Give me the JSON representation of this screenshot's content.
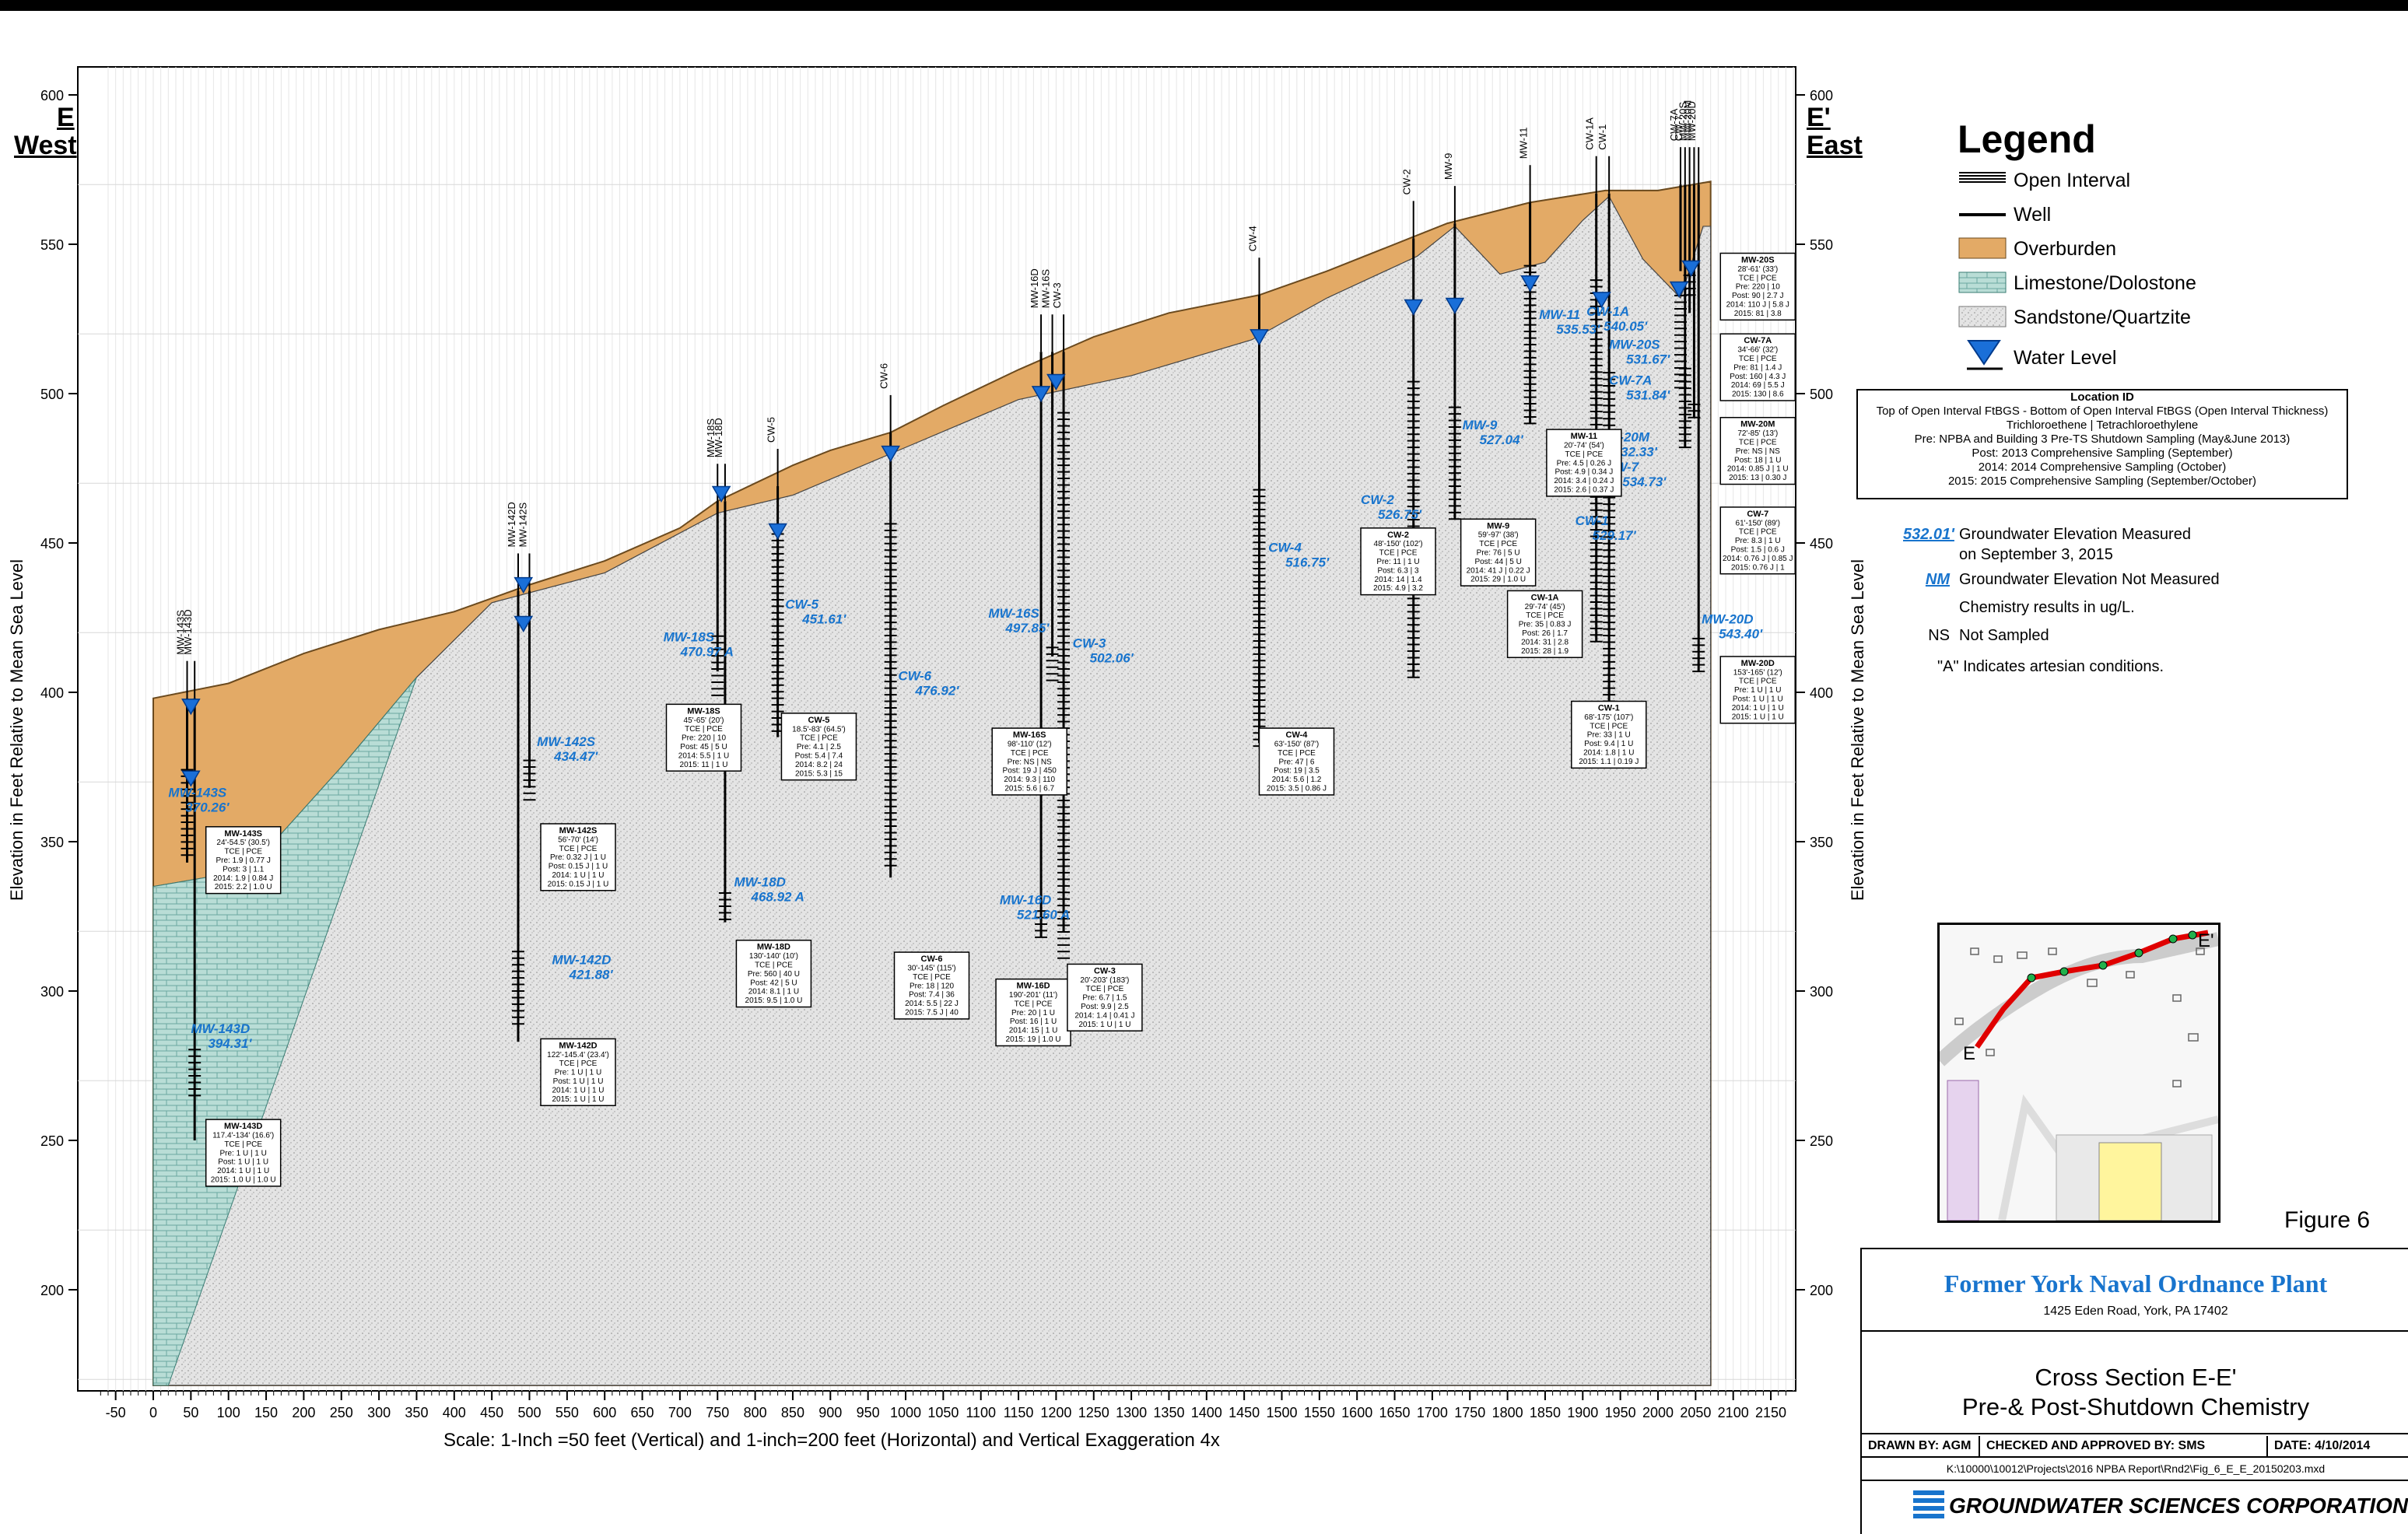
{
  "side_labels": {
    "left_code": "E",
    "left_dir": "West",
    "right_code": "E'",
    "right_dir": "East"
  },
  "axis": {
    "y_label": "Elevation in Feet Relative to Mean Sea Level",
    "y_ticks": [
      200,
      250,
      300,
      350,
      400,
      450,
      500,
      550,
      600
    ],
    "x_ticks": [
      -50,
      0,
      50,
      100,
      150,
      200,
      250,
      300,
      350,
      400,
      450,
      500,
      550,
      600,
      650,
      700,
      750,
      800,
      850,
      900,
      950,
      1000,
      1050,
      1100,
      1150,
      1200,
      1250,
      1300,
      1350,
      1400,
      1450,
      1500,
      1550,
      1600,
      1650,
      1700,
      1750,
      1800,
      1850,
      1900,
      1950,
      2000,
      2050,
      2100,
      2150
    ],
    "scale_text": "Scale: 1-Inch =50 feet (Vertical) and 1-inch=200 feet (Horizontal) and Vertical Exaggeration 4x"
  },
  "colors": {
    "overburden": "#e3aa66",
    "limestone": "#b9ddd6",
    "sandstone": "#e3e3e3",
    "water": "#1a6fd8",
    "label_blue": "#1874cd",
    "red": "#d40000"
  },
  "ground_surface": [
    [
      0,
      398
    ],
    [
      100,
      403
    ],
    [
      200,
      413
    ],
    [
      300,
      421
    ],
    [
      400,
      427
    ],
    [
      500,
      436
    ],
    [
      600,
      444
    ],
    [
      700,
      455
    ],
    [
      750,
      464
    ],
    [
      800,
      470
    ],
    [
      850,
      476
    ],
    [
      900,
      481
    ],
    [
      980,
      487
    ],
    [
      1050,
      496
    ],
    [
      1150,
      508
    ],
    [
      1250,
      519
    ],
    [
      1350,
      527
    ],
    [
      1470,
      533
    ],
    [
      1560,
      541
    ],
    [
      1680,
      553
    ],
    [
      1720,
      557
    ],
    [
      1830,
      564
    ],
    [
      1930,
      568
    ],
    [
      2000,
      568
    ],
    [
      2070,
      571
    ]
  ],
  "wells": [
    {
      "name": "MW-143S",
      "x": 45,
      "top": 398,
      "bottom": 343,
      "screen_top": 375,
      "screen_bottom": 345.5,
      "wl_value": "MW-143S\n370.26'",
      "wl": 370.26
    },
    {
      "name": "MW-143D",
      "x": 55,
      "top": 398,
      "bottom": 250,
      "screen_top": 282,
      "screen_bottom": 265,
      "wl_value": "MW-143D\n394.31'",
      "wl": 394.31
    },
    {
      "name": "MW-142D",
      "x": 485,
      "top": 434,
      "bottom": 283,
      "screen_top": 314,
      "screen_bottom": 289,
      "wl_value": "MW-142D\n421.88'",
      "wl": 421.88
    },
    {
      "name": "MW-142S",
      "x": 500,
      "top": 434,
      "bottom": 368,
      "screen_top": 378,
      "screen_bottom": 364,
      "wl_value": "MW-142S\n434.47'",
      "wl": 434.47
    },
    {
      "name": "MW-18S",
      "x": 750,
      "top": 464,
      "bottom": 407,
      "screen_top": 419,
      "screen_bottom": 399,
      "wl_value": "MW-18S\n470.97 A",
      "wl": 470.97
    },
    {
      "name": "MW-18D",
      "x": 760,
      "top": 464,
      "bottom": 323,
      "screen_top": 334,
      "screen_bottom": 324,
      "wl_value": "MW-18D\n468.92 A",
      "wl": 468.92
    },
    {
      "name": "CW-5",
      "x": 830,
      "top": 469,
      "bottom": 385,
      "screen_top": 455,
      "screen_bottom": 387,
      "wl_value": "CW-5\n451.61'",
      "wl": 451.61
    },
    {
      "name": "CW-6",
      "x": 980,
      "top": 487,
      "bottom": 338,
      "screen_top": 457,
      "screen_bottom": 342,
      "wl_value": "CW-6\n476.92'",
      "wl": 476.92
    },
    {
      "name": "MW-16D",
      "x": 1180,
      "top": 514,
      "bottom": 318,
      "screen_top": 328,
      "screen_bottom": 318,
      "wl_value": "MW-16D\n521.60 A",
      "wl": 521.6
    },
    {
      "name": "MW-16S",
      "x": 1195,
      "top": 514,
      "bottom": 412,
      "screen_top": 416,
      "screen_bottom": 404,
      "wl_value": "MW-16S\n497.85'",
      "wl": 497.85
    },
    {
      "name": "CW-3",
      "x": 1210,
      "top": 514,
      "bottom": 320,
      "screen_top": 494,
      "screen_bottom": 311,
      "wl_value": "CW-3\n502.06'",
      "wl": 502.06
    },
    {
      "name": "CW-4",
      "x": 1470,
      "top": 533,
      "bottom": 383,
      "screen_top": 468,
      "screen_bottom": 382,
      "wl_value": "CW-4\n516.75'",
      "wl": 516.75
    },
    {
      "name": "CW-2",
      "x": 1675,
      "top": 552,
      "bottom": 405,
      "screen_top": 505,
      "screen_bottom": 405,
      "wl_value": "CW-2\n526.75'",
      "wl": 526.75
    },
    {
      "name": "MW-9",
      "x": 1730,
      "top": 557,
      "bottom": 458,
      "screen_top": 497,
      "screen_bottom": 458,
      "wl_value": "MW-9\n527.04'",
      "wl": 527.04
    },
    {
      "name": "MW-11",
      "x": 1830,
      "top": 564,
      "bottom": 490,
      "screen_top": 544,
      "screen_bottom": 490,
      "wl_value": "MW-11\n535.53'",
      "wl": 535.53
    },
    {
      "name": "CW-1A",
      "x": 1918,
      "top": 567,
      "bottom": 417,
      "screen_top": 538,
      "screen_bottom": 417,
      "wl_value": "CW-1A\n540.05'",
      "wl": 540.05
    },
    {
      "name": "CW-1",
      "x": 1935,
      "top": 567,
      "bottom": 397,
      "screen_top": 507,
      "screen_bottom": 397,
      "wl_value": "CW-1\n529.17'",
      "wl": 529.17
    },
    {
      "name": "CW-7A",
      "x": 2030,
      "top": 570,
      "bottom": 541,
      "screen_top": 536,
      "screen_bottom": 502,
      "wl_value": "CW-7A\n531.84'",
      "wl": 531.84
    },
    {
      "name": "CW-7",
      "x": 2036,
      "top": 570,
      "bottom": 482,
      "screen_top": 509,
      "screen_bottom": 482,
      "wl_value": "CW-7\n534.73'",
      "wl": 534.73
    },
    {
      "name": "MW-20S",
      "x": 2042,
      "top": 570,
      "bottom": 527,
      "screen_top": 541,
      "screen_bottom": 533,
      "wl_value": "MW-20S\n531.67'",
      "wl": 531.67
    },
    {
      "name": "MW-20M",
      "x": 2048,
      "top": 570,
      "bottom": 492,
      "screen_top": 498,
      "screen_bottom": 492,
      "wl_value": "MW-20M\n532.33'",
      "wl": 532.33
    },
    {
      "name": "MW-20D",
      "x": 2054,
      "top": 570,
      "bottom": 407,
      "screen_top": 418,
      "screen_bottom": 407,
      "wl_value": "MW-20D\n543.40'",
      "wl": 543.4
    }
  ],
  "water_levels": [
    {
      "x": 50,
      "y": 394.31
    },
    {
      "x": 50,
      "y": 370.26
    },
    {
      "x": 492,
      "y": 435
    },
    {
      "x": 492,
      "y": 422
    },
    {
      "x": 755,
      "y": 465.5
    },
    {
      "x": 830,
      "y": 453
    },
    {
      "x": 980,
      "y": 479
    },
    {
      "x": 1180,
      "y": 499
    },
    {
      "x": 1200,
      "y": 503
    },
    {
      "x": 1470,
      "y": 518
    },
    {
      "x": 1675,
      "y": 528
    },
    {
      "x": 1730,
      "y": 528.5
    },
    {
      "x": 1830,
      "y": 536
    },
    {
      "x": 1925,
      "y": 530.5
    },
    {
      "x": 2028,
      "y": 534
    },
    {
      "x": 2044,
      "y": 541
    }
  ],
  "wl_labels": [
    {
      "text": "MW-143S",
      "val": "370.26'",
      "x": 20,
      "y": 365
    },
    {
      "text": "MW-143D",
      "val": "394.31'",
      "x": 50,
      "y": 286
    },
    {
      "text": "MW-142S",
      "val": "434.47'",
      "x": 510,
      "y": 382
    },
    {
      "text": "MW-142D",
      "val": "421.88'",
      "x": 530,
      "y": 309
    },
    {
      "text": "MW-18S",
      "val": "470.97 A",
      "x": 678,
      "y": 417
    },
    {
      "text": "MW-18D",
      "val": "468.92 A",
      "x": 772,
      "y": 335
    },
    {
      "text": "CW-5",
      "val": "451.61'",
      "x": 840,
      "y": 428
    },
    {
      "text": "CW-6",
      "val": "476.92'",
      "x": 990,
      "y": 404
    },
    {
      "text": "MW-16S",
      "val": "497.85'",
      "x": 1110,
      "y": 425
    },
    {
      "text": "CW-3",
      "val": "502.06'",
      "x": 1222,
      "y": 415
    },
    {
      "text": "MW-16D",
      "val": "521.60 A",
      "x": 1125,
      "y": 329
    },
    {
      "text": "CW-4",
      "val": "516.75'",
      "x": 1482,
      "y": 447
    },
    {
      "text": "CW-2",
      "val": "526.75'",
      "x": 1605,
      "y": 463
    },
    {
      "text": "MW-9",
      "val": "527.04'",
      "x": 1740,
      "y": 488
    },
    {
      "text": "MW-11",
      "val": "535.53'",
      "x": 1842,
      "y": 525
    },
    {
      "text": "CW-1A",
      "val": "540.05'",
      "x": 1905,
      "y": 526
    },
    {
      "text": "CW-1",
      "val": "529.17'",
      "x": 1890,
      "y": 456
    },
    {
      "text": "MW-20S",
      "val": "531.67'",
      "x": 1935,
      "y": 515
    },
    {
      "text": "CW-7A",
      "val": "531.84'",
      "x": 1935,
      "y": 503
    },
    {
      "text": "MW-20M",
      "val": "532.33'",
      "x": 1918,
      "y": 484
    },
    {
      "text": "CW-7",
      "val": "534.73'",
      "x": 1930,
      "y": 474
    },
    {
      "text": "MW-20D",
      "val": "543.40'",
      "x": 2058,
      "y": 423
    }
  ],
  "data_boxes": [
    {
      "x": 70,
      "y": 355,
      "lines": [
        "MW-143S",
        "24'-54.5' (30.5')",
        "TCE | PCE",
        "Pre: 1.9 | 0.77 J",
        "Post: 3 | 1.1",
        "2014: 1.9 | 0.84 J",
        "2015: 2.2 | 1.0 U"
      ]
    },
    {
      "x": 70,
      "y": 257,
      "lines": [
        "MW-143D",
        "117.4'-134' (16.6')",
        "TCE | PCE",
        "Pre: 1 U | 1 U",
        "Post: 1 U | 1 U",
        "2014: 1 U | 1 U",
        "2015: 1.0 U | 1.0 U"
      ]
    },
    {
      "x": 515,
      "y": 356,
      "lines": [
        "MW-142S",
        "56'-70' (14')",
        "TCE | PCE",
        "Pre: 0.32 J | 1 U",
        "Post: 0.15 J | 1 U",
        "2014: 1 U | 1 U",
        "2015: 0.15 J | 1 U"
      ]
    },
    {
      "x": 515,
      "y": 284,
      "lines": [
        "MW-142D",
        "122'-145.4' (23.4')",
        "TCE | PCE",
        "Pre: 1 U | 1 U",
        "Post: 1 U | 1 U",
        "2014: 1 U | 1 U",
        "2015: 1 U | 1 U"
      ]
    },
    {
      "x": 682,
      "y": 396,
      "lines": [
        "MW-18S",
        "45'-65' (20')",
        "TCE | PCE",
        "Pre: 220 | 10",
        "Post: 45 | 5 U",
        "2014: 5.5 | 1 U",
        "2015: 11 | 1 U"
      ]
    },
    {
      "x": 775,
      "y": 317,
      "lines": [
        "MW-18D",
        "130'-140' (10')",
        "TCE | PCE",
        "Pre: 560 | 40 U",
        "Post: 42 | 5 U",
        "2014: 8.1 | 1 U",
        "2015: 9.5 | 1.0 U"
      ]
    },
    {
      "x": 835,
      "y": 393,
      "lines": [
        "CW-5",
        "18.5'-83' (64.5')",
        "TCE | PCE",
        "Pre: 4.1 | 2.5",
        "Post: 5.4 | 7.4",
        "2014: 8.2 | 24",
        "2015: 5.3 | 15"
      ]
    },
    {
      "x": 985,
      "y": 313,
      "lines": [
        "CW-6",
        "30'-145' (115')",
        "TCE | PCE",
        "Pre: 18 | 120",
        "Post: 7.4 | 36",
        "2014: 5.5 | 22 J",
        "2015: 7.5 J | 40"
      ]
    },
    {
      "x": 1115,
      "y": 388,
      "lines": [
        "MW-16S",
        "98'-110' (12')",
        "TCE | PCE",
        "Pre: NS | NS",
        "Post: 19 J | 450",
        "2014: 9.3 | 110",
        "2015: 5.6 | 6.7"
      ]
    },
    {
      "x": 1120,
      "y": 304,
      "lines": [
        "MW-16D",
        "190'-201' (11')",
        "TCE | PCE",
        "Pre: 20 | 1 U",
        "Post: 16 | 1 U",
        "2014: 15 | 1 U",
        "2015: 19 | 1.0 U"
      ]
    },
    {
      "x": 1215,
      "y": 309,
      "lines": [
        "CW-3",
        "20'-203' (183')",
        "TCE | PCE",
        "Pre: 6.7 | 1.5",
        "Post: 9.9 | 2.5",
        "2014: 1.4 | 0.41 J",
        "2015: 1 U | 1 U"
      ]
    },
    {
      "x": 1470,
      "y": 388,
      "lines": [
        "CW-4",
        "63'-150' (87')",
        "TCE | PCE",
        "Pre: 47 | 6",
        "Post: 19 | 3.5",
        "2014: 5.6 | 1.2",
        "2015: 3.5 | 0.86 J"
      ]
    },
    {
      "x": 1605,
      "y": 455,
      "lines": [
        "CW-2",
        "48'-150' (102')",
        "TCE | PCE",
        "Pre: 11 | 1 U",
        "Post: 6.3 | 3",
        "2014: 14 | 1.4",
        "2015: 4.9 | 3.2"
      ]
    },
    {
      "x": 1738,
      "y": 458,
      "lines": [
        "MW-9",
        "59'-97' (38')",
        "TCE | PCE",
        "Pre: 76 | 5 U",
        "Post: 44 | 5 U",
        "2014: 41 J | 0.22 J",
        "2015: 29 | 1.0 U"
      ]
    },
    {
      "x": 1852,
      "y": 488,
      "lines": [
        "MW-11",
        "20'-74' (54')",
        "TCE | PCE",
        "Pre: 4.5 | 0.26 J",
        "Post: 4.9 | 0.34 J",
        "2014: 3.4 | 0.24 J",
        "2015: 2.6 | 0.37 J"
      ]
    },
    {
      "x": 1800,
      "y": 434,
      "lines": [
        "CW-1A",
        "29'-74' (45')",
        "TCE | PCE",
        "Pre: 35 | 0.83 J",
        "Post: 26 | 1.7",
        "2014: 31 | 2.8",
        "2015: 28 | 1.9"
      ]
    },
    {
      "x": 1885,
      "y": 397,
      "lines": [
        "CW-1",
        "68'-175' (107')",
        "TCE | PCE",
        "Pre: 33 | 1 U",
        "Post: 9.4 | 1 U",
        "2014: 1.8 | 1 U",
        "2015: 1.1 | 0.19 J"
      ]
    },
    {
      "x": 2083,
      "y": 547,
      "lines": [
        "MW-20S",
        "28'-61' (33')",
        "TCE | PCE",
        "Pre: 220 | 10",
        "Post: 90 | 2.7 J",
        "2014: 110 J | 5.8 J",
        "2015: 81 | 3.8"
      ]
    },
    {
      "x": 2083,
      "y": 520,
      "lines": [
        "CW-7A",
        "34'-66' (32')",
        "TCE | PCE",
        "Pre: 81 | 1.4 J",
        "Post: 160 | 4.3 J",
        "2014: 69 | 5.5 J",
        "2015: 130 | 8.6"
      ]
    },
    {
      "x": 2083,
      "y": 492,
      "lines": [
        "MW-20M",
        "72'-85' (13')",
        "TCE | PCE",
        "Pre: NS | NS",
        "Post: 18 | 1 U",
        "2014: 0.85 J | 1 U",
        "2015: 13 | 0.30 J"
      ]
    },
    {
      "x": 2083,
      "y": 462,
      "lines": [
        "CW-7",
        "61'-150' (89')",
        "TCE | PCE",
        "Pre: 8.3 | 1 U",
        "Post: 1.5 | 0.6 J",
        "2014: 0.76 J | 0.85 J",
        "2015: 0.76 J | 1"
      ]
    },
    {
      "x": 2083,
      "y": 412,
      "lines": [
        "MW-20D",
        "153'-165' (12')",
        "TCE | PCE",
        "Pre: 1 U | 1 U",
        "Post: 1 U | 1 U",
        "2014: 1 U | 1 U",
        "2015: 1 U | 1 U"
      ]
    }
  ],
  "legend": {
    "title": "Legend",
    "items": [
      {
        "label": "Open Interval"
      },
      {
        "label": "Well"
      },
      {
        "label": "Overburden"
      },
      {
        "label": "Limestone/Dolostone"
      },
      {
        "label": "Sandstone/Quartzite"
      },
      {
        "label": "Water Level"
      }
    ]
  },
  "location_id": {
    "title": "Location ID",
    "lines": [
      "Top of Open Interval FtBGS - Bottom of Open Interval FtBGS (Open Interval Thickness)",
      "Trichloroethene  |  Tetrachloroethylene",
      "Pre: NPBA and Building 3 Pre-TS Shutdown Sampling (May&June 2013)",
      "Post: 2013 Comprehensive Sampling (September)",
      "2014:  2014 Comprehensive Sampling (October)",
      "2015:  2015 Comprehensive Sampling (September/October)"
    ]
  },
  "notes": [
    {
      "key": "532.01'",
      "text": "Groundwater Elevation Measured"
    },
    {
      "key": "",
      "text": "on September 3, 2015"
    },
    {
      "key": "NM",
      "text": "Groundwater Elevation Not Measured"
    },
    {
      "key": "",
      "text": "Chemistry results in ug/L."
    },
    {
      "key": "NS",
      "text": "Not Sampled"
    },
    {
      "key": "",
      "text": "\"A\" Indicates artesian conditions."
    }
  ],
  "figure_label": "Figure 6",
  "title_block": {
    "site": "Former York Naval Ordnance Plant",
    "address": "1425 Eden Road, York, PA  17402",
    "title_line1": "Cross Section E-E'",
    "title_line2": "Pre-& Post-Shutdown Chemistry",
    "drawn_by": "DRAWN BY: AGM",
    "checked": "CHECKED AND APPROVED BY: SMS",
    "date": "DATE: 4/10/2014",
    "path": "K:\\10000\\10012\\Projects\\2016 NPBA Report\\Rnd2\\Fig_6_E_E_20150203.mxd",
    "company": "GROUNDWATER SCIENCES CORPORATION"
  },
  "mini_map": {
    "label_e": "E",
    "label_e_prime": "E'"
  }
}
